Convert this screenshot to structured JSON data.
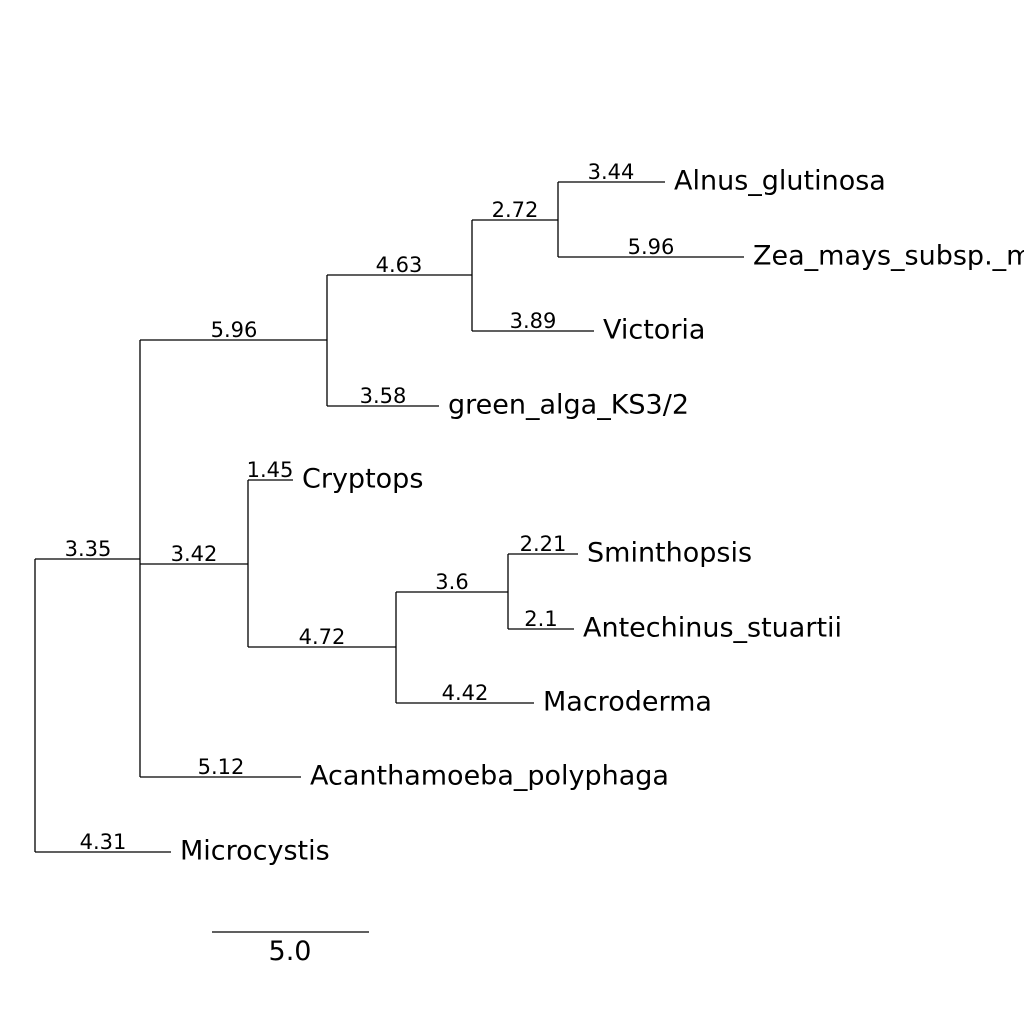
{
  "tree": {
    "leaves": [
      {
        "id": "alnus",
        "label": "Alnus_glutinosa",
        "branch_length": "3.44"
      },
      {
        "id": "zea",
        "label": "Zea_mays_subsp._mays",
        "branch_length": "5.96"
      },
      {
        "id": "victoria",
        "label": "Victoria",
        "branch_length": "3.89"
      },
      {
        "id": "green-alga",
        "label": "green_alga_KS3/2",
        "branch_length": "3.58"
      },
      {
        "id": "cryptops",
        "label": "Cryptops",
        "branch_length": "1.45"
      },
      {
        "id": "sminthopsis",
        "label": "Sminthopsis",
        "branch_length": "2.21"
      },
      {
        "id": "antechinus",
        "label": "Antechinus_stuartii",
        "branch_length": "2.1"
      },
      {
        "id": "macroderma",
        "label": "Macroderma",
        "branch_length": "4.42"
      },
      {
        "id": "acanthamoeba",
        "label": "Acanthamoeba_polyphaga",
        "branch_length": "5.12"
      },
      {
        "id": "microcystis",
        "label": "Microcystis",
        "branch_length": "4.31"
      }
    ],
    "internal_branches": [
      {
        "id": "alnus-zea-clade",
        "branch_length": "2.72"
      },
      {
        "id": "plant-clade",
        "branch_length": "4.63"
      },
      {
        "id": "upper-clade",
        "branch_length": "5.96"
      },
      {
        "id": "marsupial-clade",
        "branch_length": "3.6"
      },
      {
        "id": "mammal-clade",
        "branch_length": "4.72"
      },
      {
        "id": "cryptops-mammal-clade",
        "branch_length": "3.42"
      },
      {
        "id": "main-clade",
        "branch_length": "3.35"
      }
    ]
  },
  "scale_bar": {
    "label": "5.0"
  }
}
